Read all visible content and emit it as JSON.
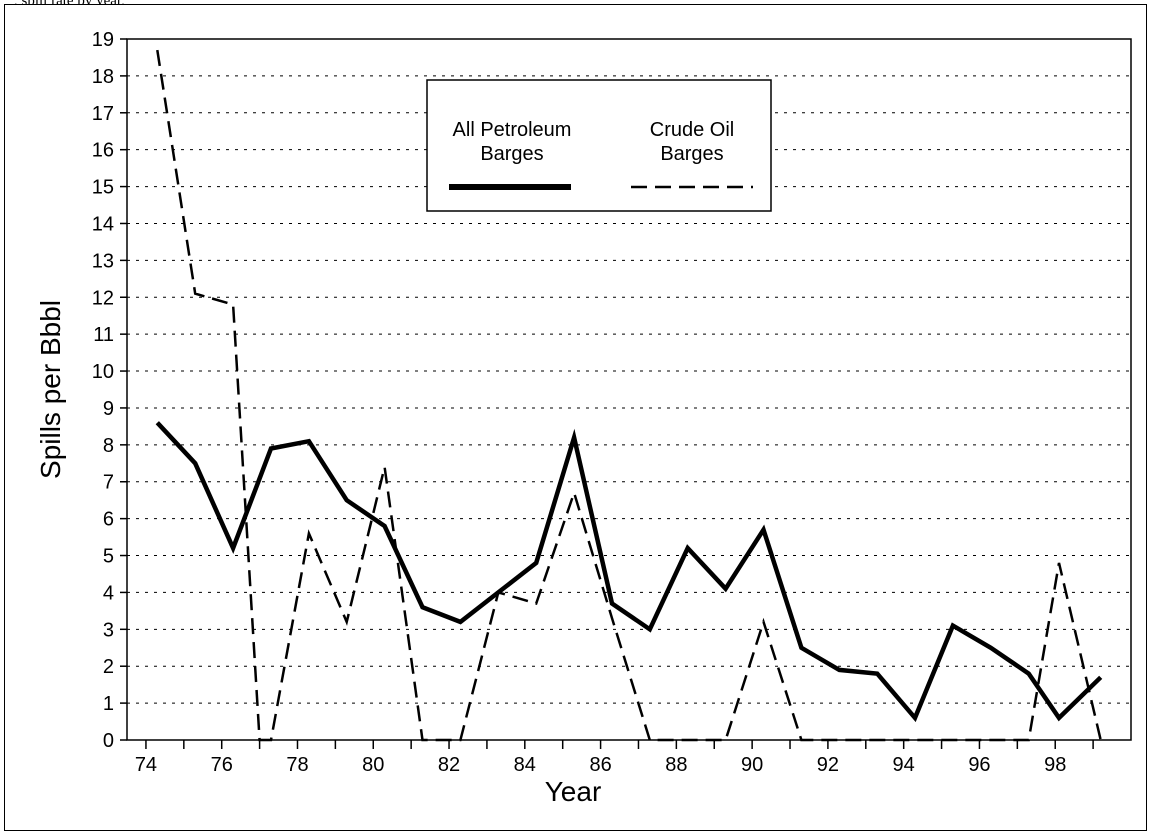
{
  "header": {
    "caption_fragment": ", spill rate by year,"
  },
  "chart_data": {
    "type": "line",
    "xlabel": "Year",
    "ylabel": "Spills per Bbbl",
    "ylim": [
      0,
      19
    ],
    "y_ticks": [
      0,
      1,
      2,
      3,
      4,
      5,
      6,
      7,
      8,
      9,
      10,
      11,
      12,
      13,
      14,
      15,
      16,
      17,
      18,
      19
    ],
    "x_tick_labels": [
      "74",
      "76",
      "78",
      "80",
      "82",
      "84",
      "86",
      "88",
      "90",
      "92",
      "94",
      "96",
      "98"
    ],
    "x_tick_values": [
      74,
      76,
      78,
      80,
      82,
      84,
      86,
      88,
      90,
      92,
      94,
      96,
      98
    ],
    "xlim": [
      73.5,
      100
    ],
    "grid": "horizontal dashed",
    "legend_position": "top-center",
    "series": [
      {
        "name": "All Petroleum Barges",
        "style": "solid-thick",
        "color": "#000000",
        "x": [
          74.3,
          75.3,
          76.3,
          77.3,
          78.3,
          79.3,
          80.3,
          81.3,
          82.3,
          83.3,
          84.3,
          85.3,
          86.3,
          87.3,
          88.3,
          89.3,
          90.3,
          91.3,
          92.3,
          93.3,
          94.3,
          95.3,
          96.3,
          97.3,
          98.1,
          99.2
        ],
        "values": [
          8.6,
          7.5,
          5.2,
          7.9,
          8.1,
          6.5,
          5.8,
          3.6,
          3.2,
          4.0,
          4.8,
          8.2,
          3.7,
          3.0,
          5.2,
          4.1,
          5.7,
          2.5,
          1.9,
          1.8,
          0.6,
          3.1,
          2.5,
          1.8,
          0.6,
          1.7
        ]
      },
      {
        "name": "Crude Oil Barges",
        "style": "dashed",
        "color": "#000000",
        "x": [
          74.3,
          75.3,
          76.3,
          77.0,
          77.3,
          78.3,
          79.3,
          80.3,
          81.3,
          82.3,
          83.3,
          84.3,
          85.3,
          86.3,
          87.3,
          88.3,
          89.3,
          90.3,
          91.3,
          92.3,
          93.3,
          94.3,
          95.3,
          96.3,
          97.3,
          98.1,
          99.2
        ],
        "values": [
          18.7,
          12.1,
          11.8,
          0,
          0,
          5.6,
          3.2,
          7.4,
          0,
          0,
          4.0,
          3.7,
          6.7,
          3.3,
          0,
          0,
          0,
          3.2,
          0,
          0,
          0,
          0,
          0,
          0,
          0,
          4.8,
          0
        ]
      }
    ]
  }
}
